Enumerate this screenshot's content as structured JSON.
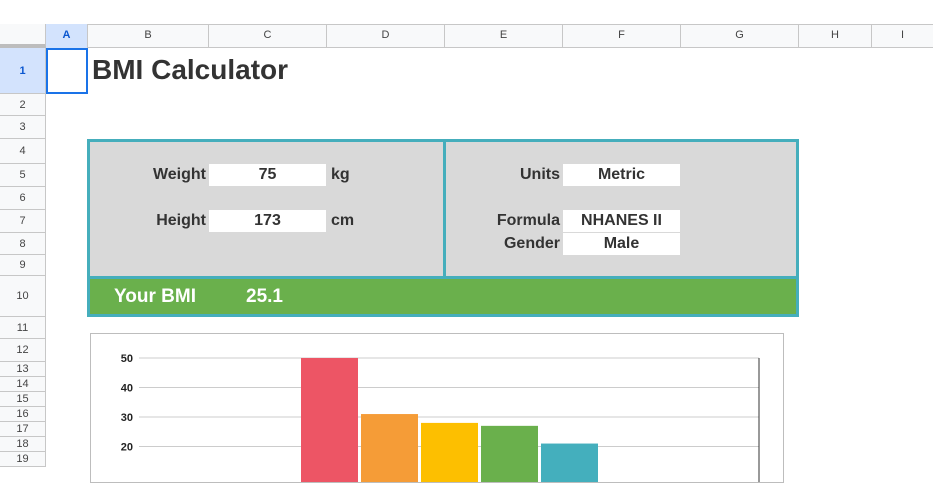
{
  "columns": [
    "A",
    "B",
    "C",
    "D",
    "E",
    "F",
    "G",
    "H",
    "I"
  ],
  "rows": [
    "1",
    "2",
    "3",
    "4",
    "5",
    "6",
    "7",
    "8",
    "9",
    "10",
    "11",
    "12",
    "13",
    "14",
    "15",
    "16",
    "17",
    "18",
    "19"
  ],
  "title": "BMI Calculator",
  "inputs": {
    "weight_label": "Weight",
    "weight_value": "75",
    "weight_unit": "kg",
    "height_label": "Height",
    "height_value": "173",
    "height_unit": "cm",
    "units_label": "Units",
    "units_value": "Metric",
    "formula_label": "Formula",
    "formula_value": "NHANES II",
    "gender_label": "Gender",
    "gender_value": "Male"
  },
  "result": {
    "label": "Your BMI",
    "value": "25.1"
  },
  "colors": {
    "panel_border": "#45aebc",
    "result_bar": "#6ab04c",
    "selection": "#1a73e8"
  },
  "chart_data": {
    "type": "bar",
    "ylim": [
      0,
      50
    ],
    "yticks": [
      "50",
      "40",
      "30",
      "20"
    ],
    "values": [
      50,
      31,
      28,
      27,
      21
    ],
    "colors": [
      "#ed5565",
      "#f59c37",
      "#fdbf00",
      "#6ab04c",
      "#44afbd"
    ]
  }
}
